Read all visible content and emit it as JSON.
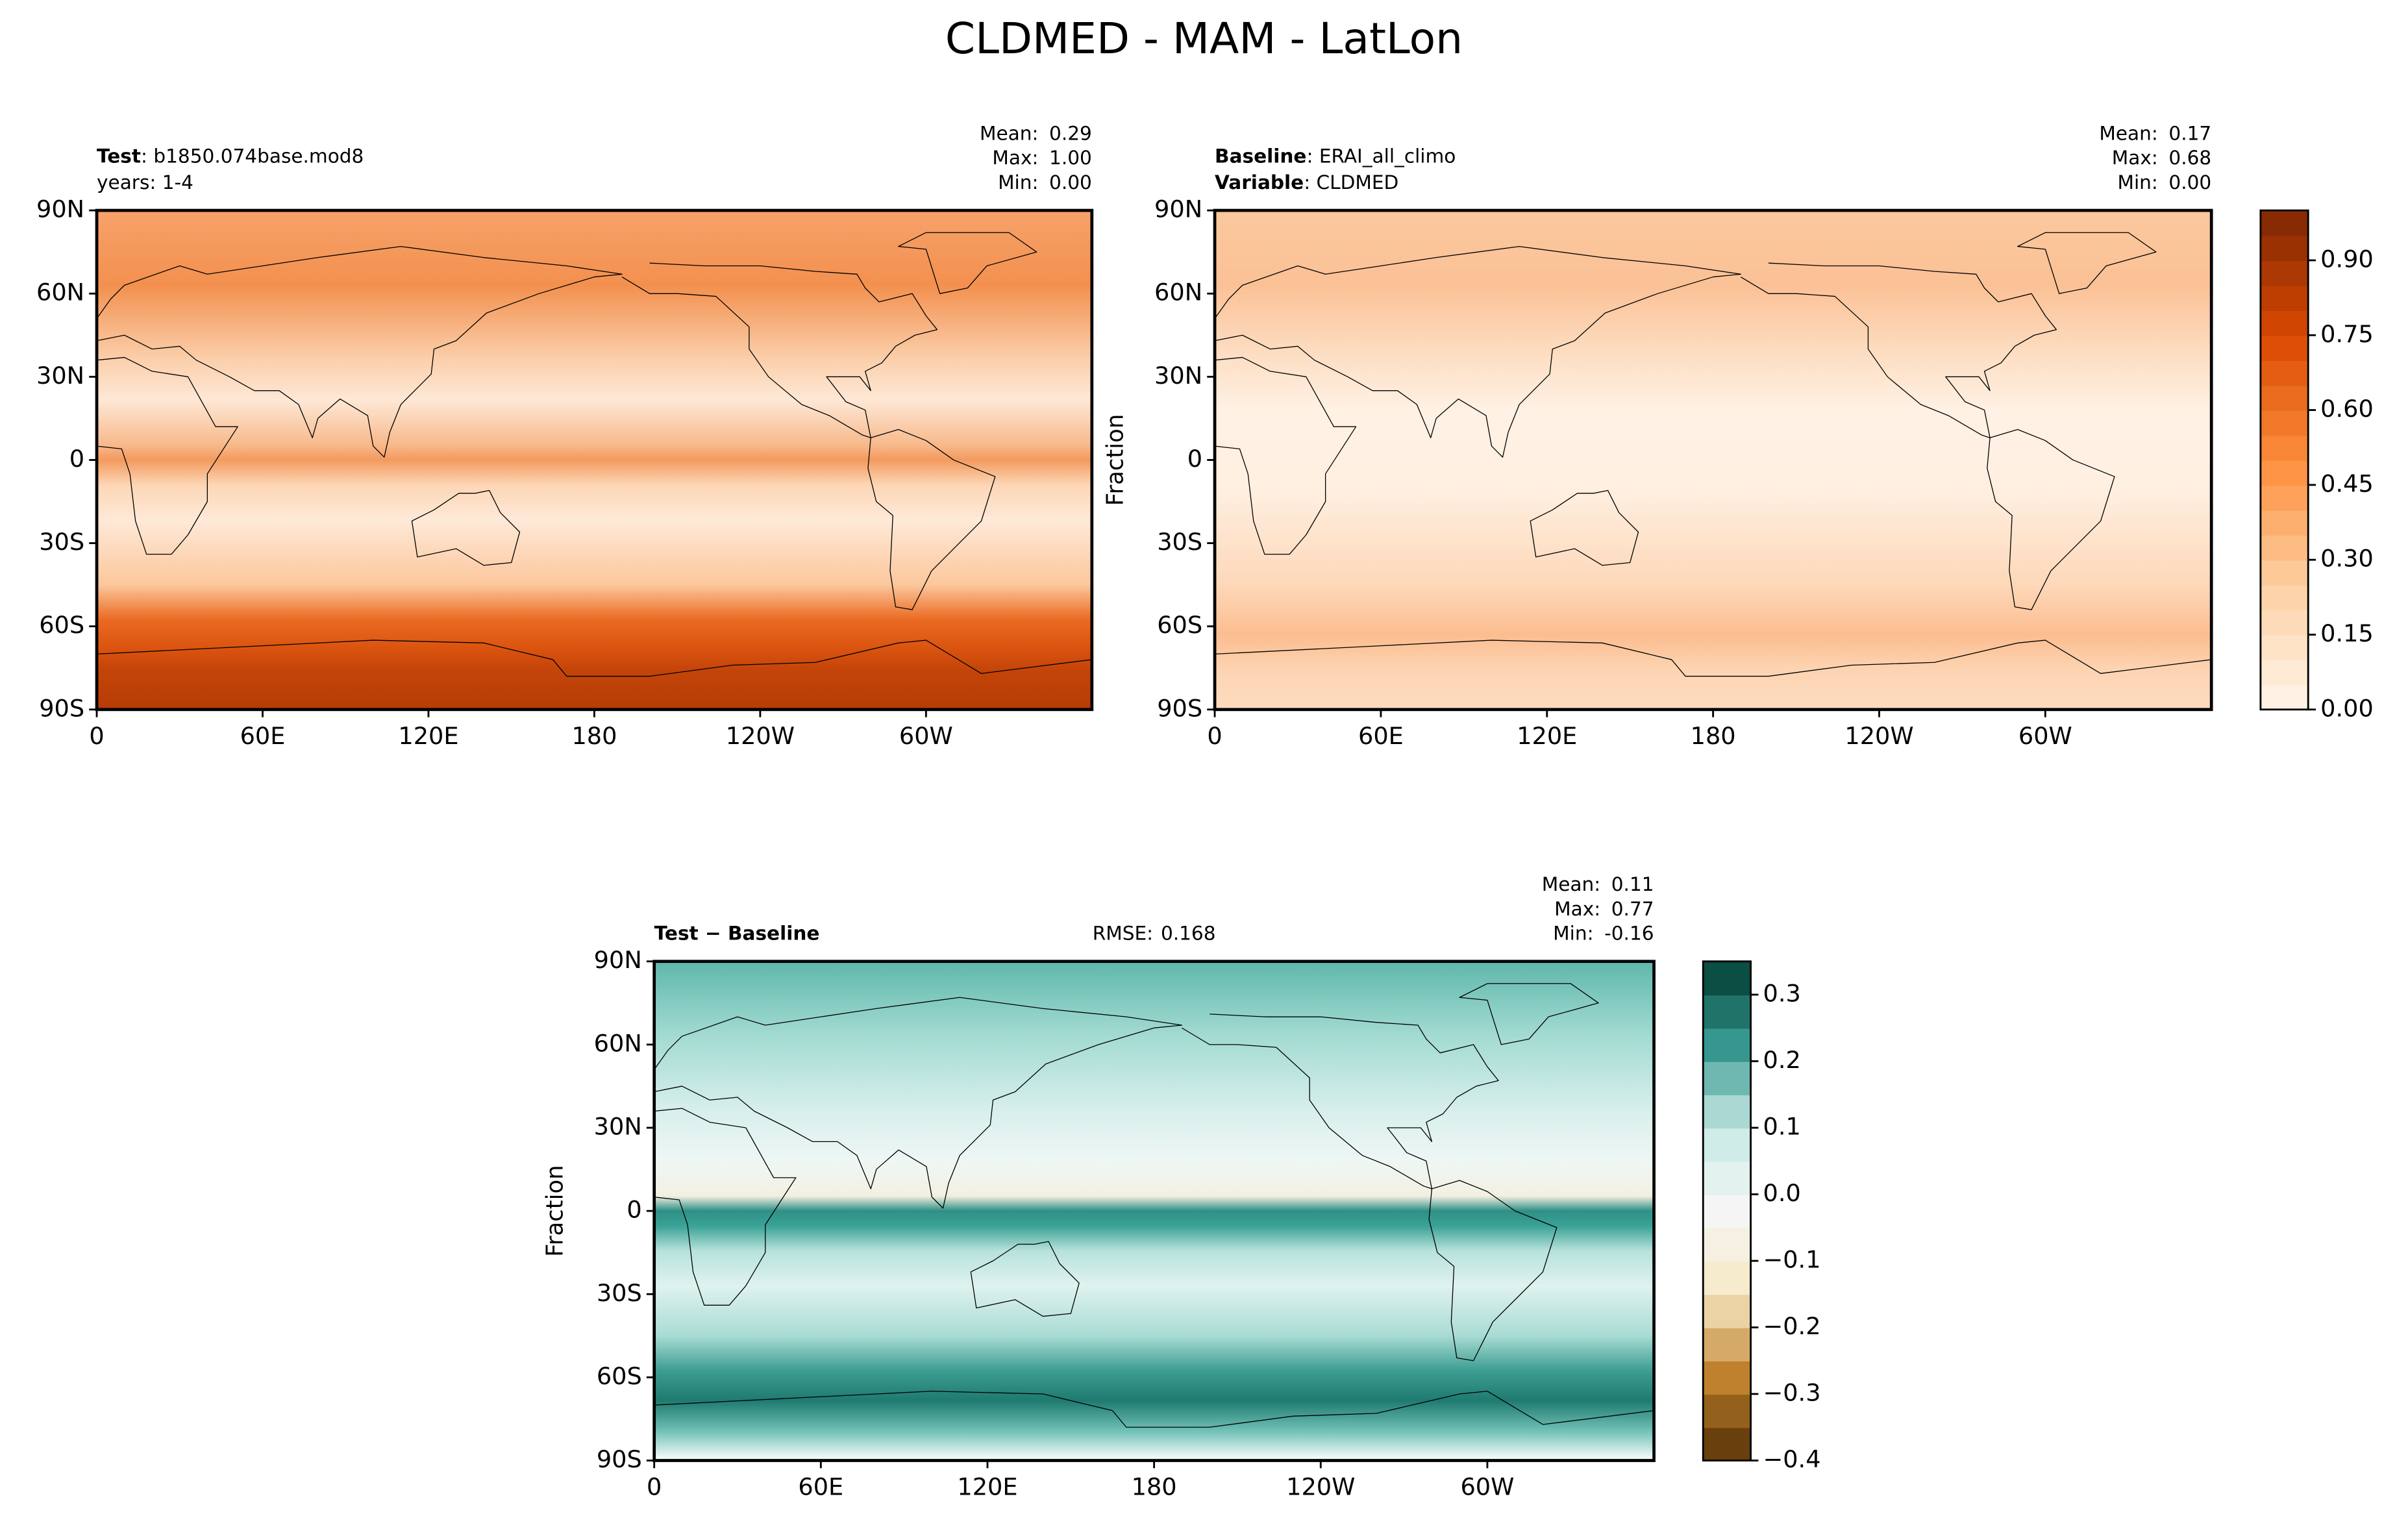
{
  "title": "CLDMED - MAM - LatLon",
  "chart_data": [
    {
      "type": "map",
      "header": [
        {
          "bold": "Test",
          "text": ": b1850.074base.mod8"
        },
        {
          "text": "years: 1-4"
        }
      ],
      "stats": [
        {
          "name": "Mean:",
          "value": 0.29
        },
        {
          "name": "Max:",
          "value": {
            "value": 1,
            "label": "1.00"
          }
        },
        {
          "name": "Min:",
          "value": {
            "value": 0,
            "label": "0.00"
          }
        }
      ],
      "xlim": [
        0,
        360
      ],
      "xticks": [
        0,
        {
          "value": 60,
          "label": "60E"
        },
        {
          "value": 120,
          "label": "120E"
        },
        180,
        {
          "value": 240,
          "label": "120W"
        },
        {
          "value": 300,
          "label": "60W"
        }
      ],
      "ylim": [
        -90,
        90
      ],
      "yticks": [
        {
          "value": 90,
          "label": "90N"
        },
        {
          "value": 60,
          "label": "60N"
        },
        {
          "value": 30,
          "label": "30N"
        },
        0,
        {
          "value": -30,
          "label": "30S"
        },
        {
          "value": -60,
          "label": "60S"
        },
        {
          "value": -90,
          "label": "90S"
        }
      ]
    },
    {
      "type": "map",
      "header": [
        {
          "bold": "Baseline",
          "text": ": ERAI_all_climo"
        },
        {
          "bold": "Variable",
          "text": ": CLDMED"
        }
      ],
      "stats": [
        {
          "name": "Mean:",
          "value": 0.17
        },
        {
          "name": "Max:",
          "value": 0.68
        },
        {
          "name": "Min:",
          "value": {
            "value": 0,
            "label": "0.00"
          }
        }
      ],
      "ylabel": "Fraction",
      "xlim": [
        0,
        360
      ],
      "xticks": [
        0,
        {
          "value": 60,
          "label": "60E"
        },
        {
          "value": 120,
          "label": "120E"
        },
        180,
        {
          "value": 240,
          "label": "120W"
        },
        {
          "value": 300,
          "label": "60W"
        }
      ],
      "ylim": [
        -90,
        90
      ],
      "yticks": [
        {
          "value": 90,
          "label": "90N"
        },
        {
          "value": 60,
          "label": "60N"
        },
        {
          "value": 30,
          "label": "30N"
        },
        0,
        {
          "value": -30,
          "label": "30S"
        },
        {
          "value": -60,
          "label": "60S"
        },
        {
          "value": -90,
          "label": "90S"
        }
      ],
      "colorbar": {
        "lim": [
          0,
          1
        ],
        "ticks": [
          {
            "value": 0,
            "label": "0.00"
          },
          0.15,
          {
            "value": 0.3,
            "label": "0.30"
          },
          0.45,
          {
            "value": 0.6,
            "label": "0.60"
          },
          0.75,
          {
            "value": 0.9,
            "label": "0.90"
          }
        ],
        "colormap": [
          "#fff5eb",
          "#fdd0a2",
          "#fd8d3c",
          "#d94801",
          "#7f2704"
        ]
      }
    },
    {
      "type": "map",
      "header": [
        {
          "bold": "Test − Baseline"
        }
      ],
      "rmse": {
        "name": "RMSE:",
        "value": 0.168
      },
      "stats": [
        {
          "name": "Mean:",
          "value": 0.11
        },
        {
          "name": "Max:",
          "value": 0.77
        },
        {
          "name": "Min:",
          "value": -0.16
        }
      ],
      "ylabel": "Fraction",
      "xlim": [
        0,
        360
      ],
      "xticks": [
        0,
        {
          "value": 60,
          "label": "60E"
        },
        {
          "value": 120,
          "label": "120E"
        },
        180,
        {
          "value": 240,
          "label": "120W"
        },
        {
          "value": 300,
          "label": "60W"
        }
      ],
      "ylim": [
        -90,
        90
      ],
      "yticks": [
        {
          "value": 90,
          "label": "90N"
        },
        {
          "value": 60,
          "label": "60N"
        },
        {
          "value": 30,
          "label": "30N"
        },
        0,
        {
          "value": -30,
          "label": "30S"
        },
        {
          "value": -60,
          "label": "60S"
        },
        {
          "value": -90,
          "label": "90S"
        }
      ],
      "colorbar": {
        "lim": [
          -0.4,
          0.35
        ],
        "ticks": [
          {
            "value": -0.4,
            "label": "−0.4"
          },
          {
            "value": -0.3,
            "label": "−0.3"
          },
          {
            "value": -0.2,
            "label": "−0.2"
          },
          {
            "value": -0.1,
            "label": "−0.1"
          },
          {
            "value": 0,
            "label": "0.0"
          },
          0.1,
          0.2,
          0.3
        ],
        "colormap": [
          "#543005",
          "#bf812d",
          "#f6e8c3",
          "#f5f5f5",
          "#c7eae5",
          "#35978f",
          "#003c30"
        ]
      }
    }
  ]
}
